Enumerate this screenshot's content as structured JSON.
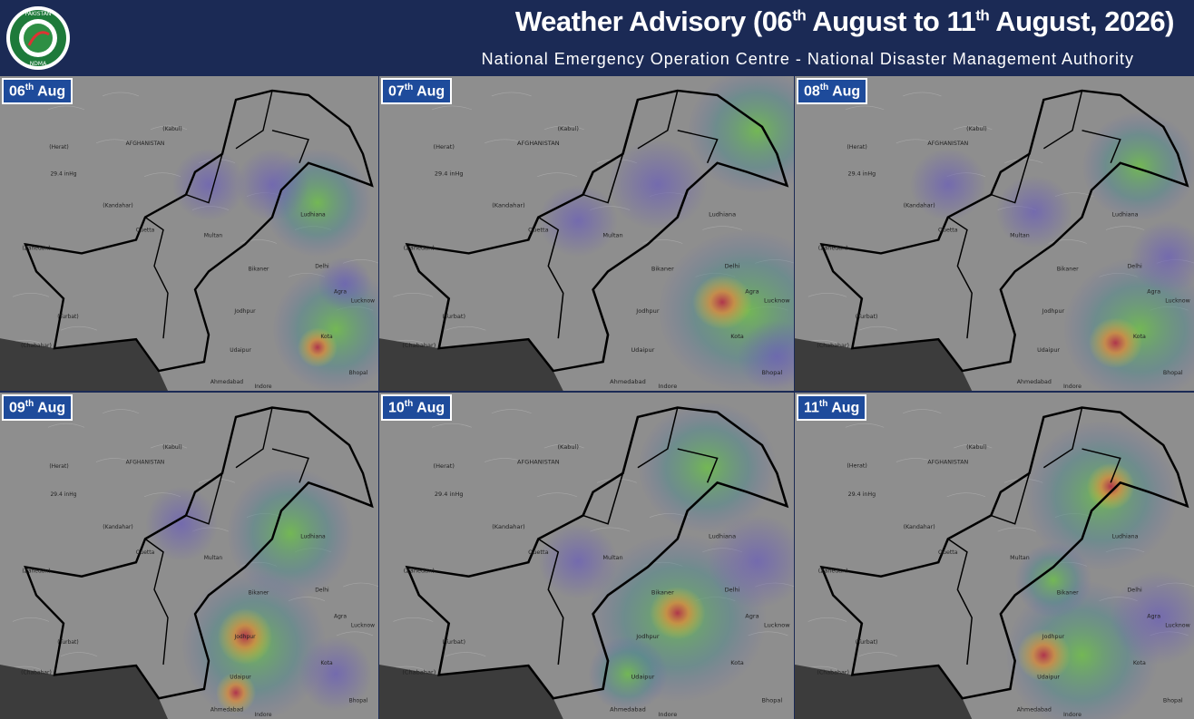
{
  "header": {
    "logo_top": "PAKISTAN",
    "logo_bottom": "NDMA",
    "title_parts": [
      "Weather Advisory (06",
      "th",
      " August to 11",
      "th",
      " August, 2026)"
    ],
    "subtitle": "National Emergency Operation Centre - National Disaster Management Authority"
  },
  "panels": [
    {
      "day": "06",
      "suffix": "th",
      "month": " Aug"
    },
    {
      "day": "07",
      "suffix": "th",
      "month": " Aug"
    },
    {
      "day": "08",
      "suffix": "th",
      "month": " Aug"
    },
    {
      "day": "09",
      "suffix": "th",
      "month": " Aug"
    },
    {
      "day": "10",
      "suffix": "th",
      "month": " Aug"
    },
    {
      "day": "11",
      "suffix": "th",
      "month": " Aug"
    }
  ],
  "places": [
    "(Kabul)",
    "(Herat)",
    "AFGHANISTAN",
    "(Kandahar)",
    "Quetta",
    "Multan",
    "Delhi",
    "Agra",
    "Jodhpur",
    "Bikaner",
    "Ahmedabad",
    "Udaipur",
    "Lucknow",
    "Kota",
    "Bhopal",
    "Indore",
    "(Turbat)",
    "(Chabahar)",
    "(Zahedan)",
    "Ludhiana",
    "29.4 inHg"
  ]
}
